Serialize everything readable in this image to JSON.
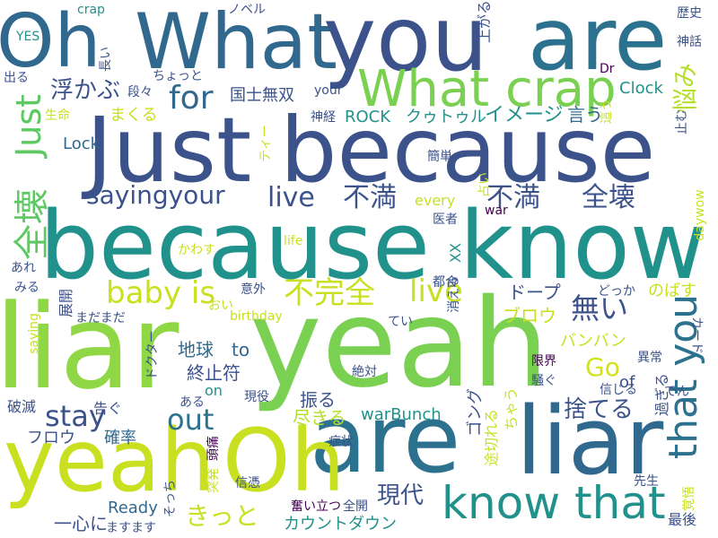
{
  "words": {
    "oh_top": "Oh",
    "what_top": "What",
    "you_top": "you",
    "are_top": "are",
    "just_because": "Just because",
    "because_know": "because know",
    "liar_main": "liar",
    "yeah_main": "yeah",
    "are_bottom": "are",
    "liar_right": "liar",
    "yeah_bottom": "yeah",
    "oh_bottom": "Oh",
    "what_crap": "What crap",
    "know_that": "know that",
    "zenkai_left": "全壊",
    "just_vertical": "Just",
    "baby_is": "baby is",
    "sayingyour": "sayingyour",
    "live_1": "live",
    "fuman_1": "不満",
    "fuman_2": "不満",
    "zenkai_right": "全壊",
    "fukanzen": "不完全",
    "live_2": "live",
    "for": "for",
    "that_you": "that you",
    "nayami": "悩み",
    "stay": "stay",
    "out": "out",
    "nai": "無い",
    "go": "Go",
    "suteru": "捨てる",
    "gendai": "現代",
    "kitto": "きっと",
    "countdown": "カウントダウン",
    "ukabu": "浮かぶ",
    "kokushimusou": "国士無双",
    "clock": "Clock",
    "rock": "ROCK",
    "cthulhu": "クゥトゥル",
    "image": "イメージ",
    "iu": "言う",
    "lock": "Lock",
    "makuru": "まくる",
    "every": "every",
    "doop": "ドープ",
    "blow": "ブロウ",
    "banban": "バンバン",
    "xx": "XX",
    "daywow": "daywow",
    "nobasu": "のばす",
    "card": "カード",
    "chikyuu": "地球",
    "to": "to",
    "shuushifu": "終止符",
    "on": "on",
    "furu": "振る",
    "tsukiru": "尽きる",
    "warbunch": "warBunch",
    "of": "of",
    "furou": "フロウ",
    "kakuritsu": "確率",
    "hametsu": "破滅",
    "ready": "Ready",
    "isshin": "一心に",
    "masumasu": "ますます",
    "gong": "ゴング",
    "togireru": "途切れる",
    "chau": "ちゃう",
    "sugiru": "過ぎる",
    "ijou": "異常",
    "shinjiru": "信じる",
    "den": "でん",
    "sensei": "先生",
    "saigo": "最後",
    "kakugo": "覚悟",
    "funiitatsu": "奮い立つ",
    "zenkai_open": "全開",
    "shinpyou": "信憑",
    "toppatsu": "突発",
    "zutsuu": "頭痛",
    "zettai": "絶対",
    "shoujou": "症状",
    "genkai": "限界",
    "sawagu": "騒ぐ",
    "genyaku": "現役",
    "aru": "ある",
    "tsugu": "告ぐ",
    "doctor": "ドクター",
    "oi": "おい",
    "birthday": "birthday",
    "tei": "てい",
    "kieru": "消える",
    "tsugou": "都合",
    "dokka": "どっか",
    "igai": "意外",
    "madamada": "まだまだ",
    "tenkai": "展開",
    "miru": "みる",
    "are_jp": "あれ",
    "kawasu": "かわす",
    "life": "life",
    "war": "war",
    "isha": "医者",
    "uranai": "占い",
    "kantan": "簡単",
    "shinkei": "神経",
    "your_small": "your",
    "dr": "Dr",
    "hau": "這う",
    "tomu": "止む",
    "seimei": "生命",
    "dandan": "段々",
    "chotto": "ちょっと",
    "tea": "ティー",
    "deru": "出る",
    "nagai": "長い",
    "yes": "YES",
    "crap_small": "crap",
    "novel": "ノベル",
    "agaru": "上がる",
    "rekishi": "歴史",
    "shinwa": "神話",
    "saying_small": "saying",
    "sotchi": "そっち"
  },
  "colors": {
    "dark_purple": "#440154",
    "indigo": "#3b528b",
    "blue": "#31688e",
    "teal": "#21918c",
    "green": "#35b779",
    "lime": "#7ad151",
    "yellow": "#c8e020",
    "light_yellow": "#fde725"
  }
}
